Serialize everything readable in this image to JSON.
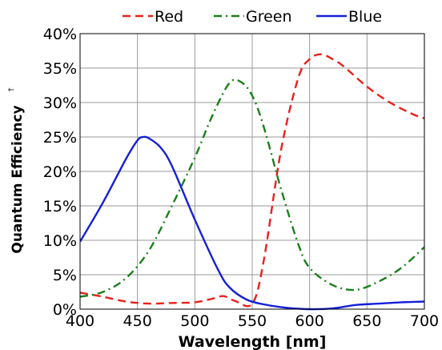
{
  "chart_data": {
    "type": "line",
    "xlabel": "Wavelength [nm]",
    "ylabel": "Quantum Efficiency",
    "ylabel_mark": "†",
    "xlim": [
      400,
      700
    ],
    "ylim": [
      0,
      40
    ],
    "x_ticks": [
      "400",
      "450",
      "500",
      "550",
      "600",
      "650",
      "700"
    ],
    "y_ticks": [
      "0%",
      "5%",
      "10%",
      "15%",
      "20%",
      "25%",
      "30%",
      "35%",
      "40%"
    ],
    "grid": true,
    "legend_position": "top",
    "series": [
      {
        "name": "Red",
        "color": "#e8201a",
        "dash": "dashed",
        "x": [
          400,
          420,
          440,
          460,
          480,
          500,
          515,
          525,
          535,
          550,
          560,
          575,
          590,
          600,
          610,
          620,
          630,
          650,
          670,
          690,
          700
        ],
        "y": [
          2.4,
          1.8,
          1.1,
          0.8,
          0.9,
          1.0,
          1.5,
          1.9,
          1.2,
          0.8,
          7.0,
          23.0,
          33.5,
          36.3,
          37.0,
          36.3,
          35.2,
          32.3,
          30.0,
          28.3,
          27.7
        ]
      },
      {
        "name": "Green",
        "color": "#1b7f1b",
        "dash": "dashdot",
        "x": [
          400,
          420,
          440,
          460,
          480,
          500,
          515,
          530,
          540,
          550,
          560,
          575,
          590,
          600,
          620,
          640,
          660,
          680,
          700
        ],
        "y": [
          1.8,
          2.5,
          4.5,
          8.5,
          15.0,
          22.0,
          28.0,
          32.8,
          33.0,
          31.0,
          26.5,
          17.5,
          9.5,
          6.0,
          3.5,
          2.8,
          4.0,
          6.0,
          9.0
        ]
      },
      {
        "name": "Blue",
        "color": "#1520d8",
        "dash": "solid",
        "x": [
          400,
          420,
          440,
          450,
          455,
          460,
          470,
          480,
          500,
          520,
          530,
          545,
          560,
          580,
          600,
          620,
          640,
          660,
          680,
          700
        ],
        "y": [
          9.8,
          15.5,
          21.8,
          24.5,
          25.0,
          24.8,
          23.5,
          20.8,
          13.0,
          5.8,
          3.2,
          1.4,
          0.7,
          0.2,
          0.0,
          0.1,
          0.6,
          0.8,
          1.0,
          1.1
        ]
      }
    ]
  }
}
